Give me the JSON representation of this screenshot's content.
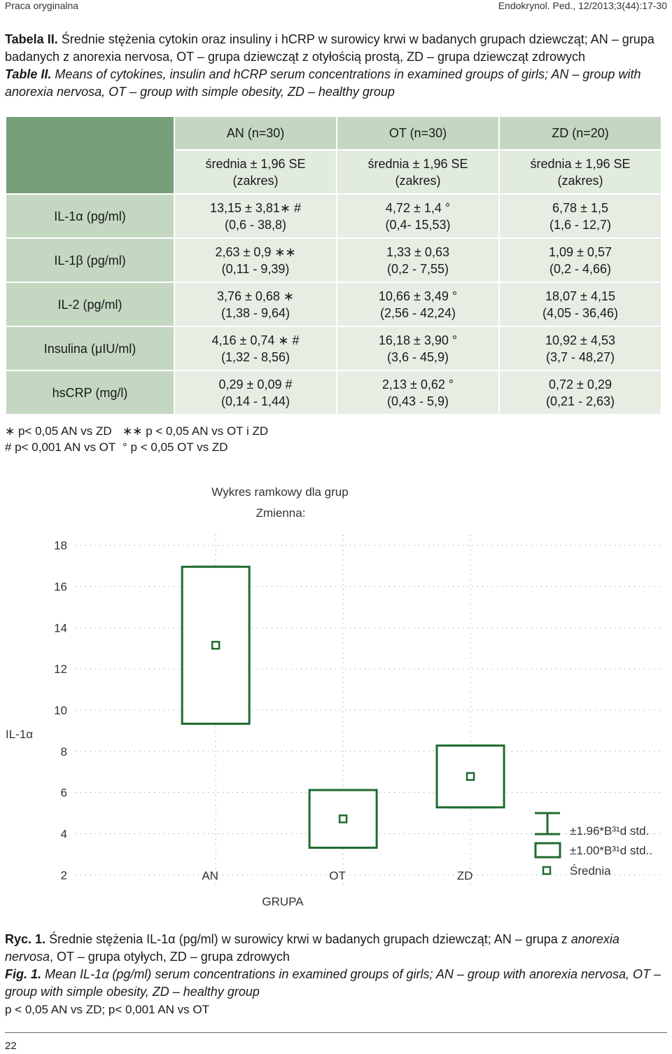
{
  "header": {
    "left": "Praca oryginalna",
    "right": "Endokrynol. Ped., 12/2013;3(44):17-30"
  },
  "table_caption": {
    "pl_label": "Tabela II.",
    "pl_text": "Średnie stężenia cytokin oraz insuliny i hCRP w surowicy krwi  w badanych grupach dziewcząt; AN – grupa badanych z anorexia nervosa, OT – grupa dziewcząt z otyłością prostą, ZD – grupa dziewcząt zdrowych",
    "en_label": "Table II.",
    "en_text": "Means of cytokines, insulin and hCRP serum concentrations in examined groups of girls; AN – group with anorexia nervosa, OT – group with simple obesity, ZD – healthy group"
  },
  "table": {
    "groups": [
      "AN (n=30)",
      "OT (n=30)",
      "ZD (n=20)"
    ],
    "subheader": [
      "średnia ± 1,96 SE",
      "(zakres)"
    ],
    "rows": [
      {
        "label": "IL-1α  (pg/ml)",
        "cells": [
          [
            "13,15 ± 3,81∗ #",
            "(0,6 - 38,8)"
          ],
          [
            "4,72 ± 1,4 °",
            "(0,4- 15,53)"
          ],
          [
            "6,78 ± 1,5",
            "(1,6 - 12,7)"
          ]
        ]
      },
      {
        "label": "IL-1β  (pg/ml)",
        "cells": [
          [
            "2,63 ± 0,9 ∗∗",
            "(0,11 - 9,39)"
          ],
          [
            "1,33 ± 0,63",
            "(0,2 - 7,55)"
          ],
          [
            "1,09 ± 0,57",
            "(0,2 - 4,66)"
          ]
        ]
      },
      {
        "label": "IL-2 (pg/ml)",
        "cells": [
          [
            "3,76 ± 0,68 ∗",
            "(1,38 - 9,64)"
          ],
          [
            "10,66 ± 3,49 °",
            "(2,56 - 42,24)"
          ],
          [
            "18,07 ± 4,15",
            "(4,05 - 36,46)"
          ]
        ]
      },
      {
        "label": "Insulina (μIU/ml)",
        "cells": [
          [
            "4,16 ± 0,74 ∗ #",
            "(1,32 - 8,56)"
          ],
          [
            "16,18 ± 3,90 °",
            "(3,6 - 45,9)"
          ],
          [
            "10,92 ± 4,53",
            "(3,7 - 48,27)"
          ]
        ]
      },
      {
        "label": "hsCRP (mg/l)",
        "cells": [
          [
            "0,29 ± 0,09 #",
            "(0,14 - 1,44)"
          ],
          [
            "2,13 ± 0,62 °",
            "(0,43 - 5,9)"
          ],
          [
            "0,72 ± 0,29",
            "(0,21 - 2,63)"
          ]
        ]
      }
    ]
  },
  "notes": {
    "n1": "∗ p< 0,05 AN vs ZD",
    "n2": "∗∗ p < 0,05 AN vs OT i ZD",
    "n3": "# p< 0,001 AN vs OT",
    "n4": "° p < 0,05 OT vs ZD"
  },
  "chart_data": {
    "type": "box",
    "title": "Wykres ramkowy dla grup",
    "subtitle": "Zmienna:",
    "xlabel": "GRUPA",
    "ylabel": "IL-1α",
    "categories": [
      "AN",
      "OT",
      "ZD"
    ],
    "ylim": [
      1.5,
      18.5
    ],
    "yticks": [
      2,
      4,
      6,
      8,
      10,
      12,
      14,
      16,
      18
    ],
    "grid": true,
    "legend_position": "bottom-right",
    "legend": [
      "±1.96*B³¹d std.",
      "±1.00*B³¹d std..",
      "Średnia"
    ],
    "series": [
      {
        "category": "AN",
        "mean": 13.15,
        "box_low": 9.34,
        "box_high": 16.96,
        "whisker_low": 9.34,
        "whisker_high": 16.96
      },
      {
        "category": "OT",
        "mean": 4.72,
        "box_low": 3.32,
        "box_high": 6.12,
        "whisker_low": 3.32,
        "whisker_high": 6.12
      },
      {
        "category": "ZD",
        "mean": 6.78,
        "box_low": 5.28,
        "box_high": 8.28,
        "whisker_low": 5.28,
        "whisker_high": 8.28
      }
    ],
    "colors": {
      "boxes": "#1f6b30",
      "grid": "#8a8a8a"
    }
  },
  "fig_caption": {
    "pl_label": "Ryc. 1.",
    "pl_text_a": "Średnie stężenia IL-1α  (pg/ml) w surowicy krwi w badanych grupach dziewcząt; AN – grupa z ",
    "pl_text_i": "anorexia nervosa",
    "pl_text_b": ", OT – grupa otyłych, ZD – grupa zdrowych",
    "en_label": "Fig. 1.",
    "en_text": "Mean IL-1α  (pg/ml) serum concentrations in examined groups of girls; AN – group with anorexia nervosa, OT – group with simple obesity, ZD – healthy group",
    "sig": "p < 0,05 AN vs ZD;  p< 0,001 AN vs OT"
  },
  "page_number": "22"
}
